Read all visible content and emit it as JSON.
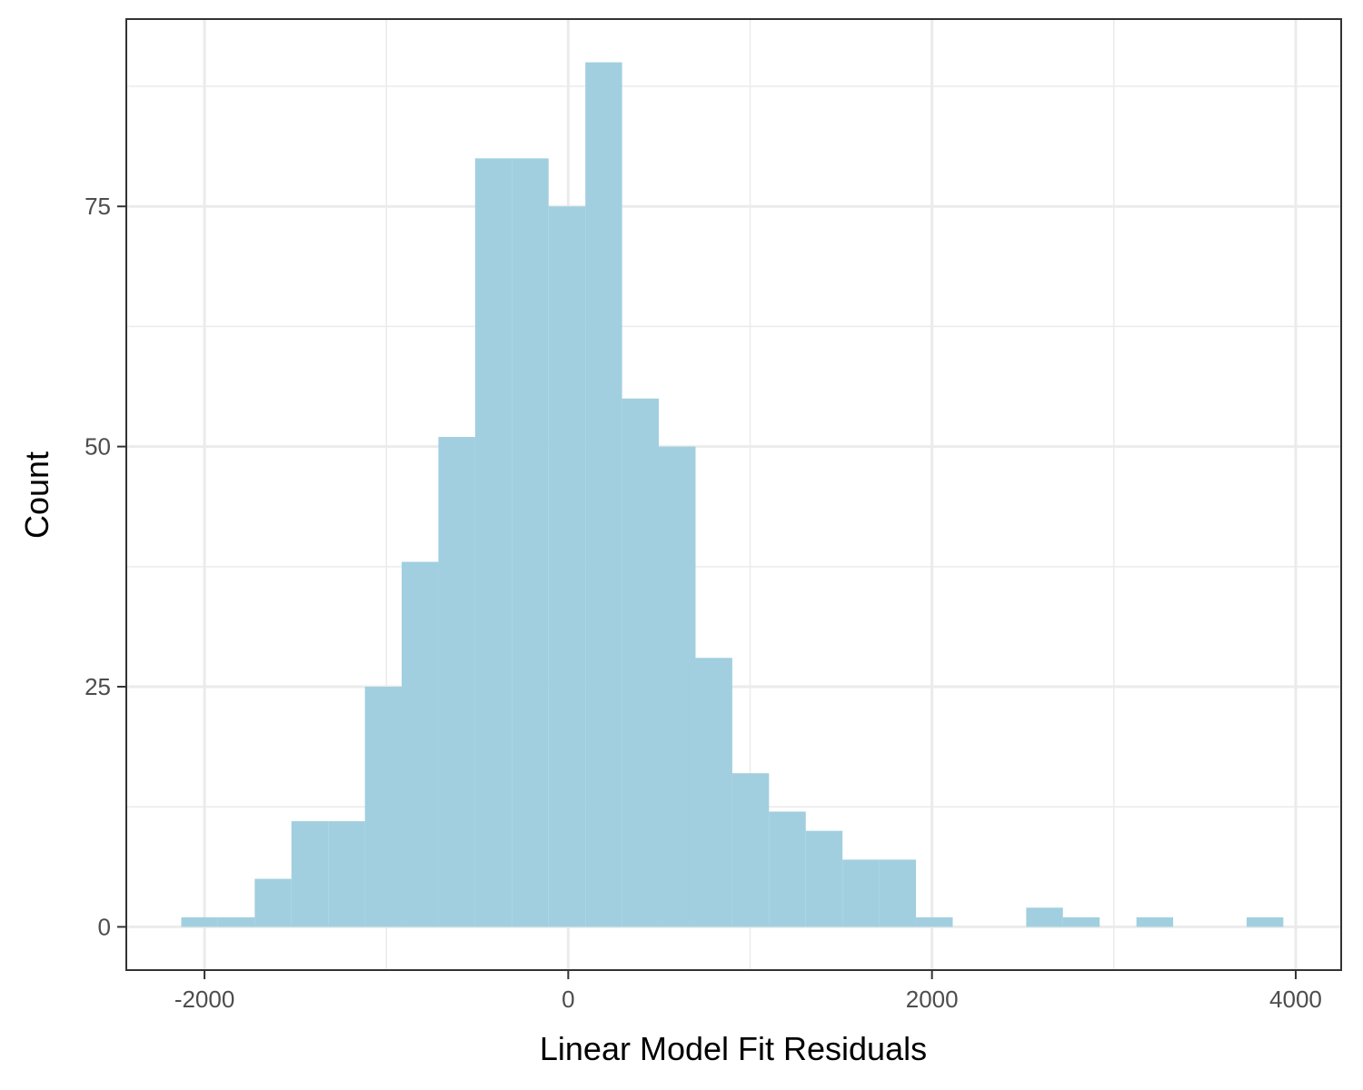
{
  "chart_data": {
    "type": "bar",
    "xlabel": "Linear Model Fit Residuals",
    "ylabel": "Count",
    "xlim": [
      -2430,
      4250
    ],
    "ylim": [
      -4.5,
      94.5
    ],
    "x_ticks": [
      -2000,
      0,
      2000,
      4000
    ],
    "x_tick_labels": [
      "-2000",
      "0",
      "2000",
      "4000"
    ],
    "y_ticks": [
      0,
      25,
      50,
      75
    ],
    "y_tick_labels": [
      "0",
      "25",
      "50",
      "75"
    ],
    "x_minor_gridlines": [
      -1000,
      1000,
      3000
    ],
    "y_minor_gridlines": [
      12.5,
      37.5,
      62.5,
      87.5
    ],
    "bin_width": 202,
    "bins": [
      {
        "x0": -2128,
        "x1": -1926,
        "count": 1
      },
      {
        "x0": -1926,
        "x1": -1724,
        "count": 1
      },
      {
        "x0": -1724,
        "x1": -1522,
        "count": 5
      },
      {
        "x0": -1522,
        "x1": -1320,
        "count": 11
      },
      {
        "x0": -1320,
        "x1": -1118,
        "count": 11
      },
      {
        "x0": -1118,
        "x1": -916,
        "count": 25
      },
      {
        "x0": -916,
        "x1": -714,
        "count": 38
      },
      {
        "x0": -714,
        "x1": -512,
        "count": 51
      },
      {
        "x0": -512,
        "x1": -310,
        "count": 80
      },
      {
        "x0": -310,
        "x1": -108,
        "count": 80
      },
      {
        "x0": -108,
        "x1": 94,
        "count": 75
      },
      {
        "x0": 94,
        "x1": 296,
        "count": 90
      },
      {
        "x0": 296,
        "x1": 498,
        "count": 55
      },
      {
        "x0": 498,
        "x1": 700,
        "count": 50
      },
      {
        "x0": 700,
        "x1": 902,
        "count": 28
      },
      {
        "x0": 902,
        "x1": 1104,
        "count": 16
      },
      {
        "x0": 1104,
        "x1": 1306,
        "count": 12
      },
      {
        "x0": 1306,
        "x1": 1508,
        "count": 10
      },
      {
        "x0": 1508,
        "x1": 1710,
        "count": 7
      },
      {
        "x0": 1710,
        "x1": 1912,
        "count": 7
      },
      {
        "x0": 1912,
        "x1": 2114,
        "count": 1
      },
      {
        "x0": 2114,
        "x1": 2316,
        "count": 0
      },
      {
        "x0": 2316,
        "x1": 2518,
        "count": 0
      },
      {
        "x0": 2518,
        "x1": 2720,
        "count": 2
      },
      {
        "x0": 2720,
        "x1": 2922,
        "count": 1
      },
      {
        "x0": 2922,
        "x1": 3124,
        "count": 0
      },
      {
        "x0": 3124,
        "x1": 3326,
        "count": 1
      },
      {
        "x0": 3326,
        "x1": 3528,
        "count": 0
      },
      {
        "x0": 3528,
        "x1": 3730,
        "count": 0
      },
      {
        "x0": 3730,
        "x1": 3932,
        "count": 1
      }
    ],
    "bar_color": "#a1cfe0",
    "panel_border_color": "#333333",
    "grid_color": "#ebebeb",
    "grid": true,
    "legend": "none"
  }
}
